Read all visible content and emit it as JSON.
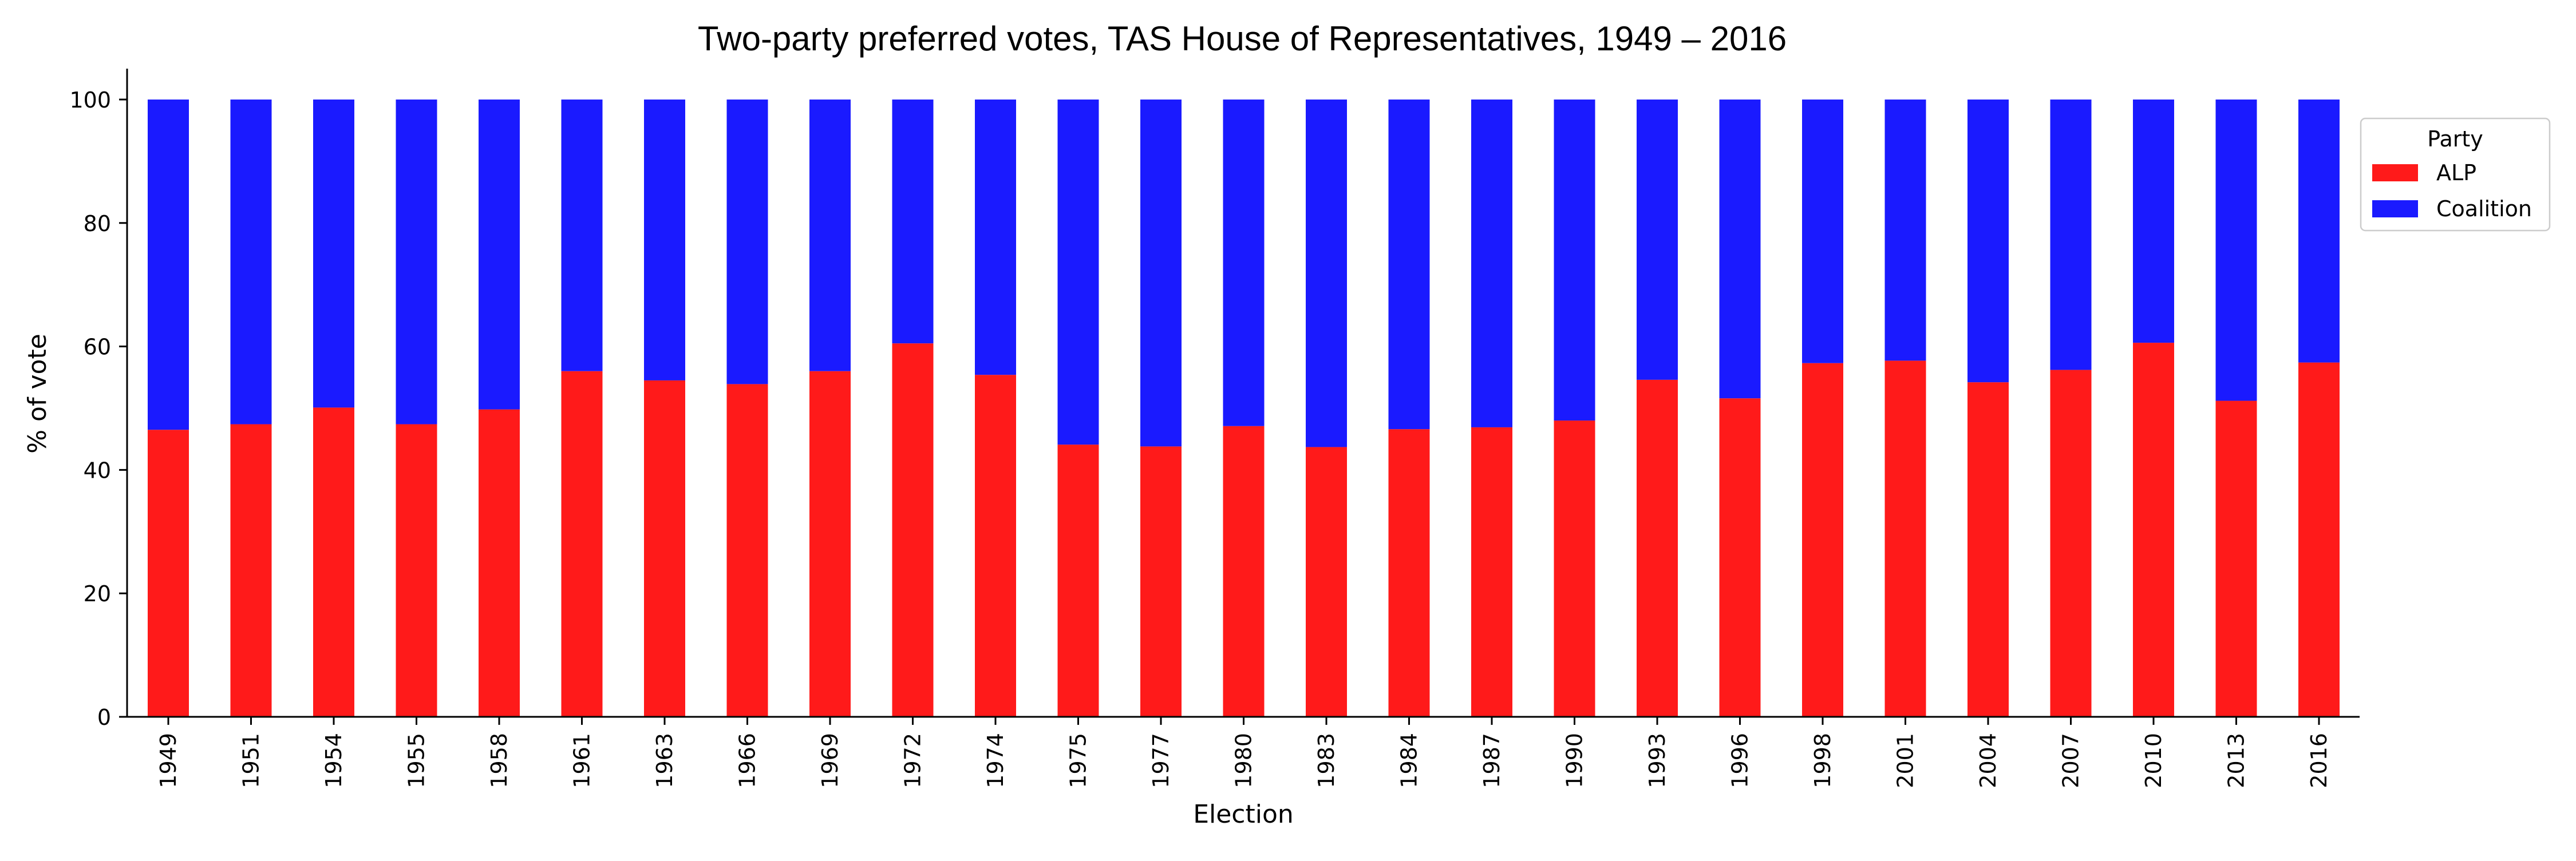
{
  "chart_data": {
    "type": "bar",
    "stacked": true,
    "title": "Two-party preferred votes, TAS House of Representatives, 1949 – 2016",
    "xlabel": "Election",
    "ylabel": "% of vote",
    "ylim": [
      0,
      105
    ],
    "yticks": [
      0,
      20,
      40,
      60,
      80,
      100
    ],
    "grid": false,
    "legend": {
      "title": "Party",
      "placement": "outside-right-top"
    },
    "categories": [
      "1949",
      "1951",
      "1954",
      "1955",
      "1958",
      "1961",
      "1963",
      "1966",
      "1969",
      "1972",
      "1974",
      "1975",
      "1977",
      "1980",
      "1983",
      "1984",
      "1987",
      "1990",
      "1993",
      "1996",
      "1998",
      "2001",
      "2004",
      "2007",
      "2010",
      "2013",
      "2016"
    ],
    "series": [
      {
        "name": "ALP",
        "color": "#ff1a1a",
        "values": [
          46.5,
          47.4,
          50.1,
          47.4,
          49.8,
          56.0,
          54.5,
          53.9,
          56.0,
          60.5,
          55.4,
          44.1,
          43.8,
          47.1,
          43.7,
          46.6,
          46.9,
          48.0,
          54.6,
          51.6,
          57.3,
          57.7,
          54.2,
          56.2,
          60.6,
          51.2,
          57.4
        ]
      },
      {
        "name": "Coalition",
        "color": "#1a1aff",
        "values": [
          53.5,
          52.6,
          49.9,
          52.6,
          50.2,
          44.0,
          45.5,
          46.1,
          44.0,
          39.5,
          44.6,
          55.9,
          56.2,
          52.9,
          56.3,
          53.4,
          53.1,
          52.0,
          45.4,
          48.4,
          42.7,
          42.3,
          45.8,
          43.8,
          39.4,
          48.8,
          42.6
        ]
      }
    ]
  }
}
